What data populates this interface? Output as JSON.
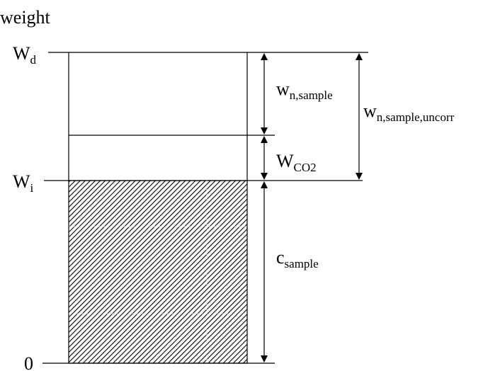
{
  "axis": {
    "title": "weight",
    "levels": [
      {
        "id": "wd",
        "base": "W",
        "sub": "d"
      },
      {
        "id": "wi",
        "base": "W",
        "sub": "i"
      },
      {
        "id": "zero",
        "base": "0",
        "sub": ""
      }
    ]
  },
  "dimensions": [
    {
      "id": "w-n-sample",
      "base": "w",
      "sub": "n,sample"
    },
    {
      "id": "w-co2",
      "base": "W",
      "sub": "CO2"
    },
    {
      "id": "c-sample",
      "base": "c",
      "sub": "sample"
    },
    {
      "id": "w-n-sample-uncorr",
      "base": "w",
      "sub": "n,sample,uncorr"
    }
  ],
  "colors": {
    "line": "#000000",
    "hatch": "#000000",
    "background": "#ffffff"
  }
}
